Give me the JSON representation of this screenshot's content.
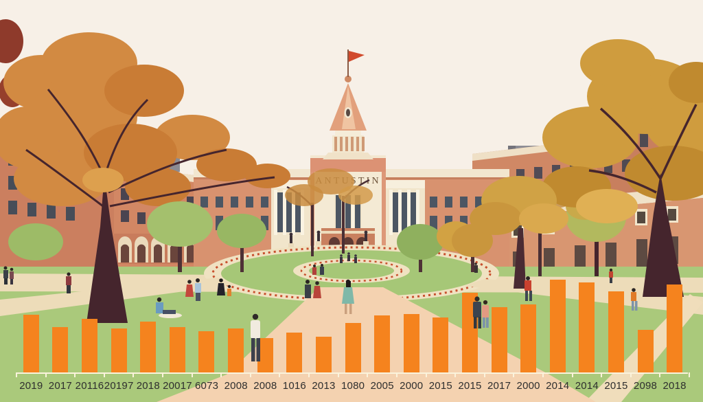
{
  "scene": {
    "building_name": "ANTUSTIN",
    "description": "flat-illustration of a university campus quad in autumn with central clock-tower building, brick side halls, trees, paths and students"
  },
  "palette": {
    "sky": "#f7f0e7",
    "lawn": "#aac97b",
    "path_cream": "#eddcb9",
    "walkway_peach": "#f4d2b0",
    "brick": "#cb7f5f",
    "building_salmon": "#d8926f",
    "trim_cream": "#f2e6cf",
    "tower_cream": "#f4ead4",
    "spire_salmon": "#e2a07c",
    "flag_red": "#d14a2c",
    "autumn_orange": "#d28a42",
    "autumn_gold": "#cf9c3e",
    "tree_green": "#9dbb67",
    "trunk_brown": "#45252d",
    "flower_red": "#c8502e",
    "roof_gray": "#8b8b93",
    "bar_orange": "#f5831e",
    "label_text": "#2e2e2e"
  },
  "chart_data": {
    "type": "bar",
    "title": "",
    "xlabel": "",
    "ylabel": "",
    "categories": [
      "2019",
      "2017",
      "20116",
      "20197",
      "2018",
      "20017",
      "6073",
      "2008",
      "2008",
      "1016",
      "2013",
      "1080",
      "2005",
      "2000",
      "2015",
      "2015",
      "2017",
      "2000",
      "2014",
      "2014",
      "2015",
      "2098",
      "2018"
    ],
    "values": [
      84,
      66,
      78,
      64,
      74,
      66,
      60,
      64,
      50,
      58,
      52,
      72,
      83,
      85,
      80,
      116,
      95,
      99,
      135,
      131,
      118,
      62,
      128
    ],
    "ylim": [
      0,
      140
    ],
    "gridlines": false,
    "legend": "none",
    "bar_color": "#f5831e",
    "axis_color": "#fbf3dc",
    "label_color": "#2e2e2e"
  }
}
